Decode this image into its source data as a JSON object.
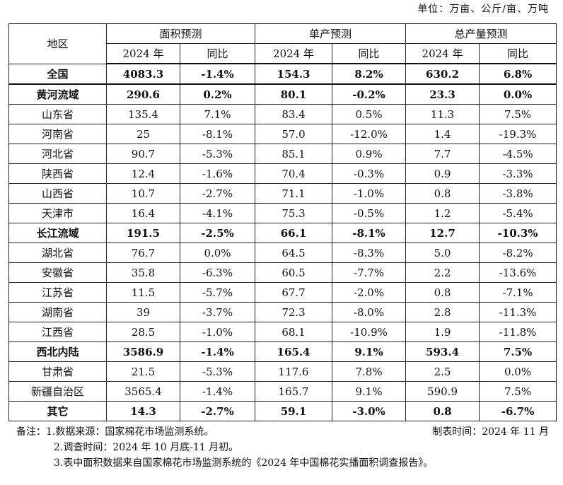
{
  "unit_label": "单位：万亩、公斤/亩、万吨",
  "table": {
    "region_header": "地区",
    "group_headers": [
      "面积预测",
      "单产预测",
      "总产量预测"
    ],
    "sub_headers": [
      "2024 年",
      "同比",
      "2024 年",
      "同比",
      "2024 年",
      "同比"
    ],
    "rows": [
      {
        "region": "全国",
        "bold": true,
        "cells": [
          "4083.3",
          "-1.4%",
          "154.3",
          "8.2%",
          "630.2",
          "6.8%"
        ]
      },
      {
        "region": "黄河流域",
        "bold": true,
        "cells": [
          "290.6",
          "0.2%",
          "80.1",
          "-0.2%",
          "23.3",
          "0.0%"
        ]
      },
      {
        "region": "山东省",
        "bold": false,
        "cells": [
          "135.4",
          "7.1%",
          "83.4",
          "0.5%",
          "11.3",
          "7.5%"
        ]
      },
      {
        "region": "河南省",
        "bold": false,
        "cells": [
          "25",
          "-8.1%",
          "57.0",
          "-12.0%",
          "1.4",
          "-19.3%"
        ]
      },
      {
        "region": "河北省",
        "bold": false,
        "cells": [
          "90.7",
          "-5.3%",
          "85.1",
          "0.9%",
          "7.7",
          "-4.5%"
        ]
      },
      {
        "region": "陕西省",
        "bold": false,
        "cells": [
          "12.4",
          "-1.6%",
          "70.4",
          "-0.3%",
          "0.9",
          "-3.3%"
        ]
      },
      {
        "region": "山西省",
        "bold": false,
        "cells": [
          "10.7",
          "-2.7%",
          "71.1",
          "-1.0%",
          "0.8",
          "-3.8%"
        ]
      },
      {
        "region": "天津市",
        "bold": false,
        "cells": [
          "16.4",
          "-4.1%",
          "75.3",
          "-0.5%",
          "1.2",
          "-5.4%"
        ]
      },
      {
        "region": "长江流域",
        "bold": true,
        "cells": [
          "191.5",
          "-2.5%",
          "66.1",
          "-8.1%",
          "12.7",
          "-10.3%"
        ]
      },
      {
        "region": "湖北省",
        "bold": false,
        "cells": [
          "76.7",
          "0.0%",
          "64.5",
          "-8.3%",
          "5.0",
          "-8.2%"
        ]
      },
      {
        "region": "安徽省",
        "bold": false,
        "cells": [
          "35.8",
          "-6.3%",
          "60.5",
          "-7.7%",
          "2.2",
          "-13.6%"
        ]
      },
      {
        "region": "江苏省",
        "bold": false,
        "cells": [
          "11.5",
          "-5.7%",
          "67.7",
          "-2.0%",
          "0.8",
          "-7.1%"
        ]
      },
      {
        "region": "湖南省",
        "bold": false,
        "cells": [
          "39",
          "-3.7%",
          "72.3",
          "-8.0%",
          "2.8",
          "-11.3%"
        ]
      },
      {
        "region": "江西省",
        "bold": false,
        "cells": [
          "28.5",
          "-1.0%",
          "68.1",
          "-10.9%",
          "1.9",
          "-11.8%"
        ]
      },
      {
        "region": "西北内陆",
        "bold": true,
        "cells": [
          "3586.9",
          "-1.4%",
          "165.4",
          "9.1%",
          "593.4",
          "7.5%"
        ]
      },
      {
        "region": "甘肃省",
        "bold": false,
        "cells": [
          "21.5",
          "-5.3%",
          "117.6",
          "7.8%",
          "2.5",
          "0.0%"
        ]
      },
      {
        "region": "新疆自治区",
        "bold": false,
        "cells": [
          "3565.4",
          "-1.4%",
          "165.7",
          "9.1%",
          "590.9",
          "7.5%"
        ]
      },
      {
        "region": "其它",
        "bold": true,
        "cells": [
          "14.3",
          "-2.7%",
          "59.1",
          "-3.0%",
          "0.8",
          "-6.7%"
        ]
      }
    ]
  },
  "notes": {
    "line1": "备注：1.数据来源：国家棉花市场监测系统。",
    "made_time": "制表时间：2024 年 11 月",
    "line2": "2.调查时间：2024 年 10 月底-11 月初。",
    "line3": "3.表中面积数据来自国家棉花市场监测系统的《2024 年中国棉花实播面积调查报告》。"
  }
}
